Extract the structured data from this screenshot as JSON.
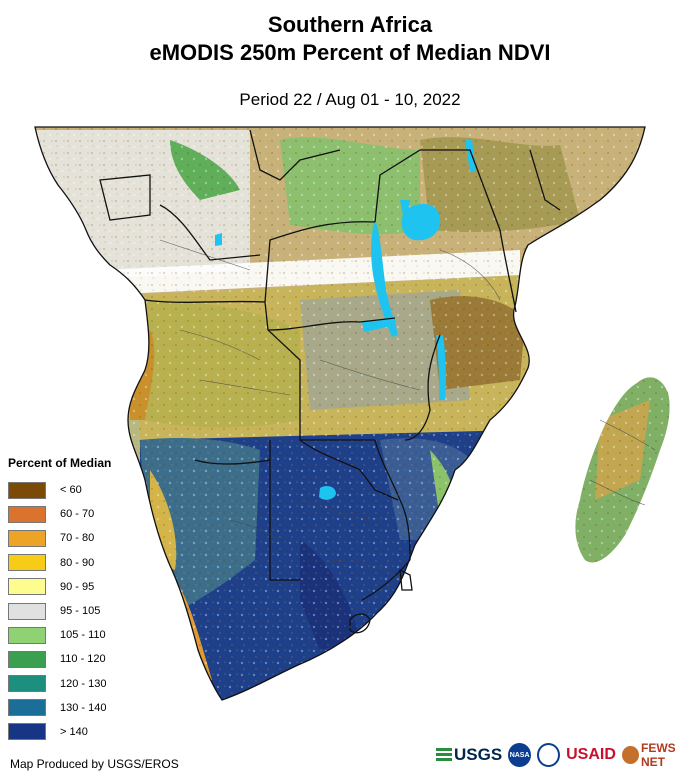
{
  "title_line1": "Southern Africa",
  "title_line2": "eMODIS 250m Percent of Median NDVI",
  "period": "Period 22 / Aug 01 - 10, 2022",
  "legend": {
    "title": "Percent of Median",
    "items": [
      {
        "label": "< 60",
        "color": "#7a4a06"
      },
      {
        "label": "60 - 70",
        "color": "#d9732e"
      },
      {
        "label": "70 - 80",
        "color": "#eda326"
      },
      {
        "label": "80 - 90",
        "color": "#f6cc16"
      },
      {
        "label": "90 - 95",
        "color": "#fdfc8f"
      },
      {
        "label": "95 - 105",
        "color": "#e0e0e0"
      },
      {
        "label": "105 - 110",
        "color": "#8fd273"
      },
      {
        "label": "110 - 120",
        "color": "#3aa04f"
      },
      {
        "label": "120 - 130",
        "color": "#1d8f7e"
      },
      {
        "label": "130 - 140",
        "color": "#1a6e98"
      },
      {
        "label": "> 140",
        "color": "#173584"
      }
    ]
  },
  "credit": "Map Produced by USGS/EROS",
  "logos": {
    "usgs": "USGS",
    "nasa": "NASA",
    "usaid": "USAID",
    "fews": "FEWS NET"
  },
  "colors": {
    "water": "#1ec3ef",
    "border": "#111111",
    "noData": "#ffffff"
  }
}
